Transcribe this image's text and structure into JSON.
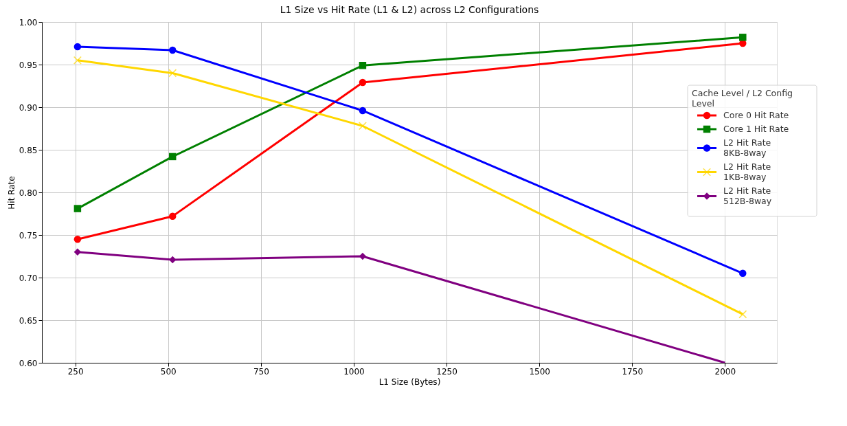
{
  "chart_data": {
    "type": "line",
    "title": "L1 Size vs Hit Rate (L1 & L2) across L2 Configurations",
    "xlabel": "L1 Size (Bytes)",
    "ylabel": "Hit Rate",
    "legend_title": "Cache Level / L2 Config\nLevel",
    "x": [
      256,
      512,
      1024,
      2048
    ],
    "series": [
      {
        "name": "Core 0 Hit Rate",
        "color": "#ff0000",
        "marker": "circle",
        "values": [
          0.745,
          0.772,
          0.929,
          0.975
        ]
      },
      {
        "name": "Core 1 Hit Rate",
        "color": "#008000",
        "marker": "square",
        "values": [
          0.781,
          0.842,
          0.949,
          0.982
        ]
      },
      {
        "name": "L2 Hit Rate\n8KB-8way",
        "color": "#0000ff",
        "marker": "circle",
        "values": [
          0.971,
          0.967,
          0.896,
          0.705
        ]
      },
      {
        "name": "L2 Hit Rate\n1KB-8way",
        "color": "#ffd700",
        "marker": "cross",
        "values": [
          0.955,
          0.94,
          0.878,
          0.657
        ]
      },
      {
        "name": "L2 Hit Rate\n512B-8way",
        "color": "#800080",
        "marker": "diamond",
        "x": [
          256,
          512,
          1024,
          2000
        ],
        "values": [
          0.73,
          0.721,
          0.725,
          0.6
        ]
      }
    ],
    "xlim": [
      160,
      2140
    ],
    "xticks": [
      250,
      500,
      750,
      1000,
      1250,
      1500,
      1750,
      2000
    ],
    "ylim": [
      0.6,
      1.0
    ],
    "yticks": [
      {
        "value": 0.6,
        "label": "0.60"
      },
      0.65,
      {
        "value": 0.7,
        "label": "0.70"
      },
      0.75,
      {
        "value": 0.8,
        "label": "0.80"
      },
      0.85,
      {
        "value": 0.9,
        "label": "0.90"
      },
      0.95,
      {
        "value": 1.0,
        "label": "1.00"
      }
    ],
    "grid": true,
    "legend": "right",
    "line_style": "solid"
  }
}
